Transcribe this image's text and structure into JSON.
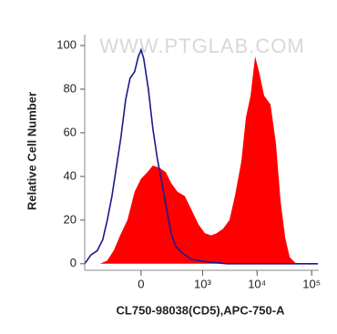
{
  "chart_data": {
    "type": "histogram-overlay",
    "watermark": "WWW.PTGLAB.COM",
    "y_label": "Relative Cell Number",
    "x_label": "CL750-98038(CD5),APC-750-A",
    "xscale": "asinh",
    "xlim": [
      -800,
      135000
    ],
    "ylim": [
      -3,
      105
    ],
    "yticks": [
      0,
      20,
      40,
      60,
      80,
      100
    ],
    "xticks": [
      0,
      {
        "value": 1000,
        "label": "10³"
      },
      {
        "value": 10000,
        "label": "10⁴"
      },
      {
        "value": 100000,
        "label": "10⁵"
      }
    ],
    "series": [
      {
        "color": "#ff0000",
        "fill": true,
        "x": [
          -748,
          -410,
          -293,
          -214,
          -150,
          -91,
          -41,
          0,
          41,
          78,
          127,
          186,
          246,
          333,
          463,
          613,
          840,
          1100,
          1443,
          1815,
          2385,
          3120,
          3930,
          5160,
          6240,
          7600,
          9210,
          11130,
          13460,
          17600,
          22200,
          26900,
          32700,
          39600,
          51900,
          130000
        ],
        "values": [
          0,
          0,
          1.5,
          6,
          13,
          20,
          33,
          39,
          42,
          45,
          44,
          42,
          37,
          33,
          31,
          25,
          18,
          14,
          13,
          14,
          16,
          20,
          31,
          47,
          67,
          77,
          95,
          87,
          77,
          73,
          55,
          29,
          12,
          3,
          0,
          0
        ]
      },
      {
        "color": "#1a1a8c",
        "fill": false,
        "x": [
          -800,
          -613,
          -463,
          -362,
          -293,
          -234,
          -186,
          -143,
          -105,
          -72,
          -41,
          -17,
          0,
          17,
          47,
          78,
          112,
          150,
          195,
          246,
          306,
          410,
          613,
          1100,
          2800,
          20000,
          130000
        ],
        "values": [
          0,
          4,
          6,
          11,
          20,
          31,
          44,
          58,
          75,
          85,
          88,
          95,
          98,
          94,
          80,
          62,
          48,
          37,
          25,
          14,
          8,
          5,
          2,
          1,
          0,
          0,
          0
        ]
      }
    ]
  }
}
